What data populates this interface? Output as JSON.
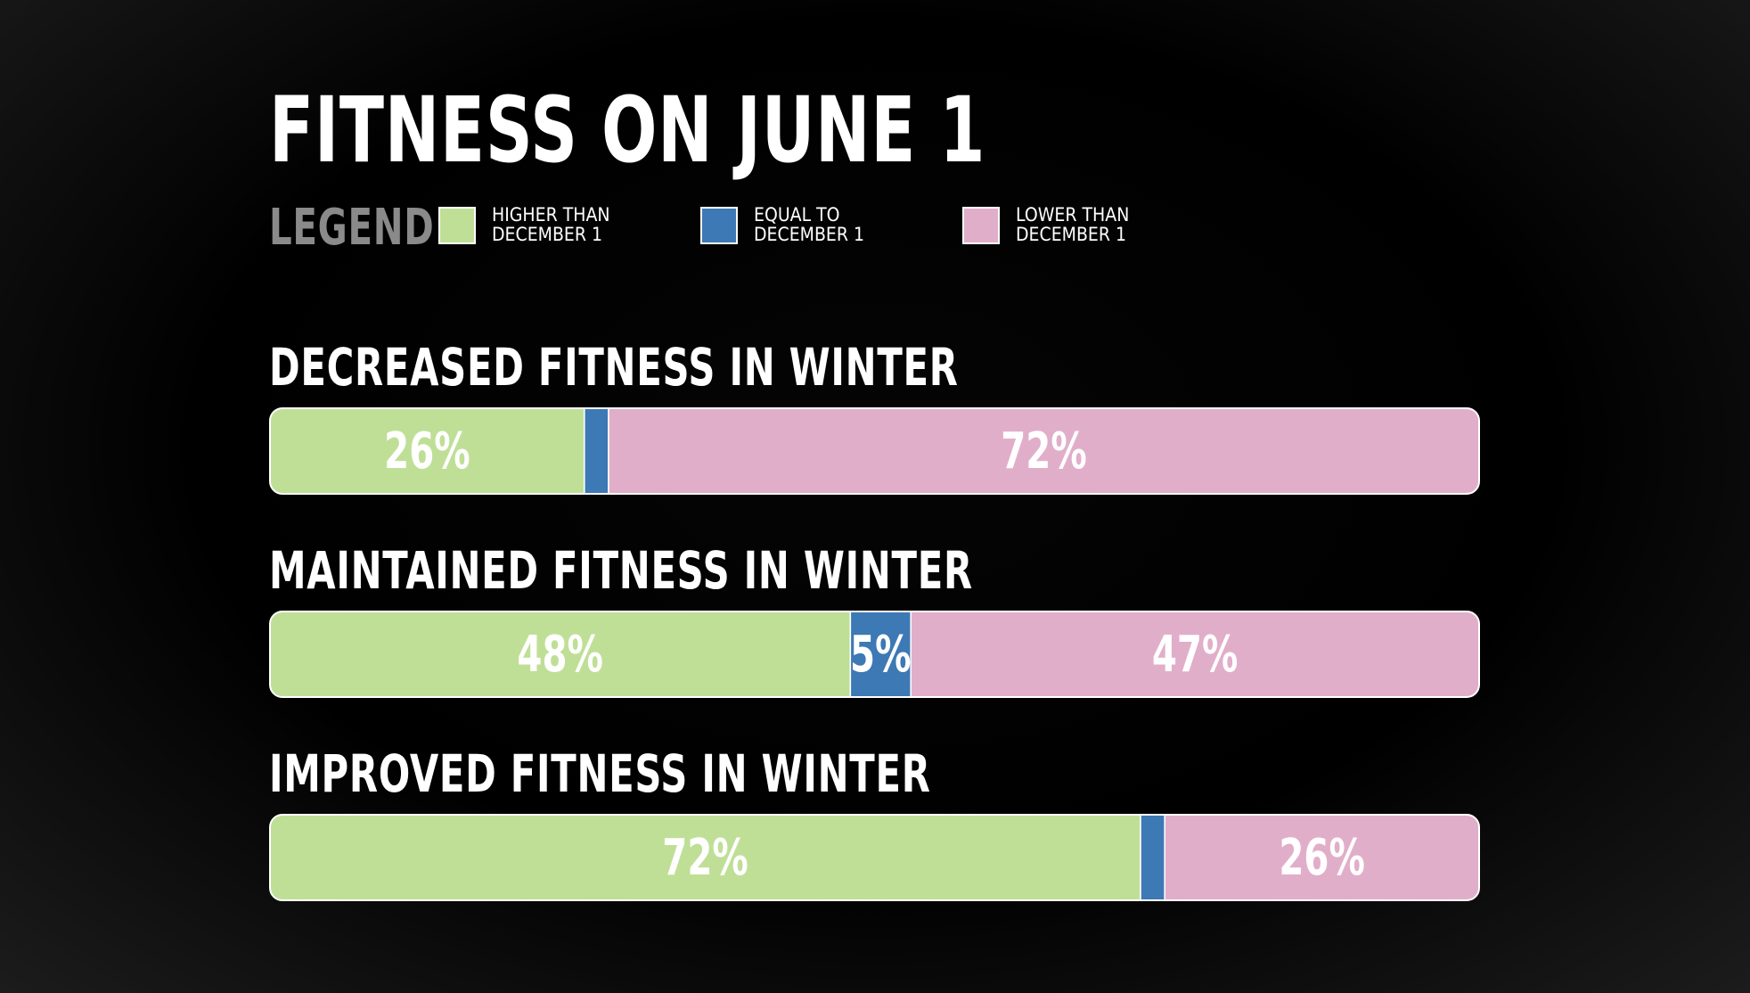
{
  "chart_data": {
    "type": "bar",
    "orientation": "horizontal",
    "stacked": true,
    "title": "FITNESS ON JUNE 1",
    "legend_label": "LEGEND:",
    "legend_placement": "top-left",
    "categories": [
      "DECREASED FITNESS IN WINTER",
      "MAINTAINED FITNESS IN WINTER",
      "IMPROVED FITNESS IN WINTER"
    ],
    "series": [
      {
        "name": "HIGHER THAN\nDECEMBER 1",
        "color": "#bfdf97",
        "values": [
          26,
          48,
          72
        ],
        "labels": [
          "26%",
          "48%",
          "72%"
        ]
      },
      {
        "name": "EQUAL TO\nDECEMBER 1",
        "color": "#3d79b4",
        "values": [
          2,
          5,
          2
        ],
        "labels": [
          "",
          "5%",
          ""
        ]
      },
      {
        "name": "LOWER THAN\nDECEMBER 1",
        "color": "#e1aeca",
        "values": [
          72,
          47,
          26
        ],
        "labels": [
          "72%",
          "47%",
          "26%"
        ]
      }
    ],
    "xlim": [
      0,
      100
    ],
    "grid": false
  }
}
